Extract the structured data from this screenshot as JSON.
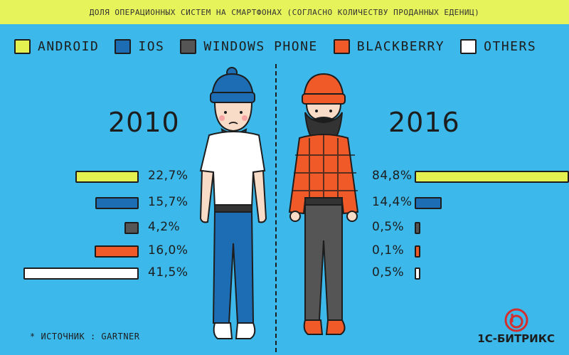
{
  "header": {
    "title": "ДОЛЯ ОПЕРАЦИОННЫХ СИСТЕМ НА СМАРТФОНАХ (СОГЛАСНО КОЛИЧЕСТВУ ПРОДАННЫХ ЕДЕНИЦ)"
  },
  "legend": [
    {
      "label": "ANDROID",
      "color": "#e3f04f"
    },
    {
      "label": "IOS",
      "color": "#1d6db4"
    },
    {
      "label": "WINDOWS PHONE",
      "color": "#555555"
    },
    {
      "label": "BLACKBERRY",
      "color": "#f05a28"
    },
    {
      "label": "OTHERS",
      "color": "#ffffff"
    }
  ],
  "left": {
    "year": "2010"
  },
  "right": {
    "year": "2016"
  },
  "chart_data": [
    {
      "type": "bar",
      "title": "2010",
      "categories": [
        "ANDROID",
        "IOS",
        "WINDOWS PHONE",
        "BLACKBERRY",
        "OTHERS"
      ],
      "values": [
        22.7,
        15.7,
        4.2,
        16.0,
        41.5
      ],
      "value_labels": [
        "22,7%",
        "15,7%",
        "4,2%",
        "16,0%",
        "41,5%"
      ],
      "orientation": "horizontal-right-aligned",
      "xlabel": "",
      "ylabel": ""
    },
    {
      "type": "bar",
      "title": "2016",
      "categories": [
        "ANDROID",
        "IOS",
        "WINDOWS PHONE",
        "BLACKBERRY",
        "OTHERS"
      ],
      "values": [
        84.8,
        14.4,
        0.5,
        0.1,
        0.5
      ],
      "value_labels": [
        "84,8%",
        "14,4%",
        "0,5%",
        "0,1%",
        "0,5%"
      ],
      "orientation": "horizontal-left-aligned",
      "xlabel": "",
      "ylabel": ""
    }
  ],
  "footer": {
    "source": "* ИСТОЧНИК : GARTNER",
    "brand": "1С-БИТРИКС"
  }
}
